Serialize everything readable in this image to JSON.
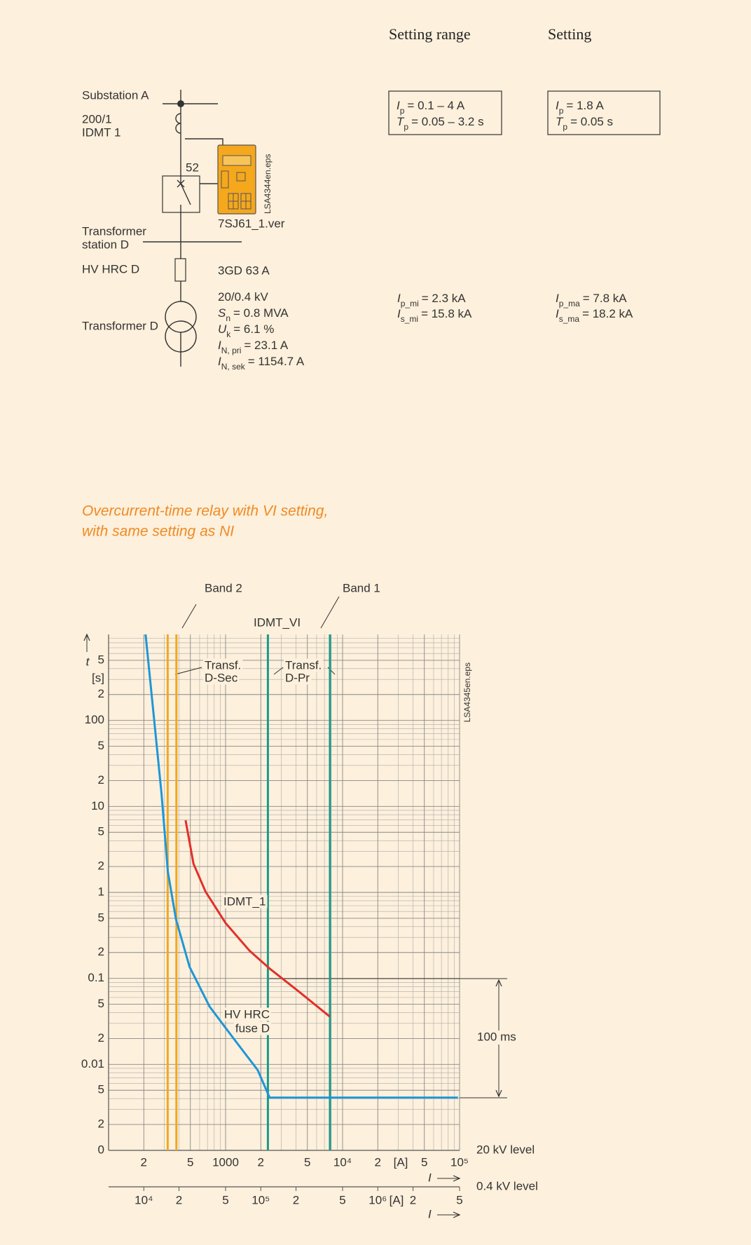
{
  "header": {
    "setting_range": "Setting range",
    "setting": "Setting"
  },
  "diagram": {
    "substation": "Substation A",
    "ct_ratio": "200/1",
    "relay": "IDMT 1",
    "breaker": "52",
    "relay_file": "7SJ61_1.ver",
    "eps": "LSA4344en.eps",
    "station": [
      "Transformer",
      "station D"
    ],
    "fuse": "HV HRC D",
    "fuse_type": "3GD 63 A",
    "transformer": "Transformer D",
    "transformer_data": [
      {
        "text": "20/0.4 kV"
      },
      {
        "sym": "S",
        "sub": "n",
        "text": "= 0.8 MVA"
      },
      {
        "sym": "U",
        "sub": "k",
        "text": "= 6.1 %"
      },
      {
        "sym": "I",
        "sub": "N, pri",
        "text": "= 23.1 A"
      },
      {
        "sym": "I",
        "sub": "N, sek",
        "text": "= 1154.7 A"
      }
    ]
  },
  "setting_range": [
    {
      "sym": "I",
      "sub": "p",
      "text": "= 0.1 – 4 A"
    },
    {
      "sym": "T",
      "sub": "p",
      "text": "= 0.05 – 3.2 s"
    }
  ],
  "setting": [
    {
      "sym": "I",
      "sub": "p",
      "text": "= 1.8 A"
    },
    {
      "sym": "T",
      "sub": "p",
      "text": "= 0.05 s"
    }
  ],
  "short_circuit_min": [
    {
      "sym": "I",
      "sub": "p_mi",
      "text": "= 2.3 kA"
    },
    {
      "sym": "I",
      "sub": "s_mi",
      "text": "= 15.8 kA"
    }
  ],
  "short_circuit_max": [
    {
      "sym": "I",
      "sub": "p_ma",
      "text": "= 7.8 kA"
    },
    {
      "sym": "I",
      "sub": "s_ma",
      "text": "= 18.2 kA"
    }
  ],
  "heading": [
    "Overcurrent-time relay with VI setting,",
    "with same setting as NI"
  ],
  "chart_data": {
    "type": "line",
    "log_x": true,
    "log_y": true,
    "grid": true,
    "xlabel": "I",
    "x_unit": "[A]",
    "x_level": "20 kV level",
    "x2label": "I",
    "x2_unit": "[A]",
    "x2_level": "0.4 kV level",
    "ylabel": "t",
    "y_unit": "[s]",
    "xlim": [
      100,
      100000
    ],
    "xticks": [
      {
        "value": 200,
        "label": "2"
      },
      {
        "value": 500,
        "label": "5"
      },
      1000,
      {
        "value": 2000,
        "label": "2"
      },
      {
        "value": 5000,
        "label": "5"
      },
      {
        "value": 10000,
        "label": "10⁴"
      },
      {
        "value": 20000,
        "label": "2"
      },
      {
        "value": 50000,
        "label": "5"
      },
      {
        "value": 100000,
        "label": "10⁵"
      }
    ],
    "xminor": [
      300,
      400,
      600,
      700,
      800,
      900,
      3000,
      4000,
      6000,
      7000,
      8000,
      9000,
      30000,
      40000,
      60000,
      70000,
      80000,
      90000
    ],
    "x2lim": [
      5000,
      5000000
    ],
    "x2ticks": [
      {
        "value": 10000,
        "label": "10⁴"
      },
      {
        "value": 20000,
        "label": "2"
      },
      {
        "value": 50000,
        "label": "5"
      },
      {
        "value": 100000,
        "label": "10⁵"
      },
      {
        "value": 200000,
        "label": "2"
      },
      {
        "value": 500000,
        "label": "5"
      },
      {
        "value": 1000000,
        "label": "10⁶"
      },
      {
        "value": 2000000,
        "label": "2"
      },
      {
        "value": 5000000,
        "label": "5"
      }
    ],
    "ylim": [
      0.001,
      1000
    ],
    "yticks": [
      {
        "value": 500,
        "label": "5"
      },
      {
        "value": 200,
        "label": "2"
      },
      100,
      {
        "value": 50,
        "label": "5"
      },
      {
        "value": 20,
        "label": "2"
      },
      10,
      {
        "value": 5,
        "label": "5"
      },
      {
        "value": 2,
        "label": "2"
      },
      1,
      {
        "value": 0.5,
        "label": "5"
      },
      {
        "value": 0.2,
        "label": "2"
      },
      0.1,
      {
        "value": 0.05,
        "label": "5"
      },
      {
        "value": 0.02,
        "label": "2"
      },
      0.01,
      {
        "value": 0.005,
        "label": "5"
      },
      {
        "value": 0.002,
        "label": "2"
      },
      {
        "value": 0.001,
        "label": "0"
      }
    ],
    "yminor": [
      300,
      400,
      600,
      700,
      800,
      900,
      30,
      40,
      60,
      70,
      80,
      90,
      3,
      4,
      6,
      7,
      8,
      9,
      0.3,
      0.4,
      0.6,
      0.7,
      0.8,
      0.9,
      0.03,
      0.04,
      0.06,
      0.07,
      0.08,
      0.09,
      0.003,
      0.004,
      0.006,
      0.007,
      0.008,
      0.009
    ],
    "series": [
      {
        "label": [
          "HV HRC",
          "fuse D"
        ],
        "color": "#1e96d7",
        "x": [
          207,
          242,
          283,
          321,
          376,
          492,
          730,
          1170,
          1880,
          2380,
          97000
        ],
        "values": [
          1000,
          121,
          14.5,
          1.74,
          0.49,
          0.136,
          0.047,
          0.02,
          0.0086,
          0.0041,
          0.0041
        ]
      },
      {
        "label": [
          "IDMT_1"
        ],
        "color": "#e2302a",
        "x": [
          455,
          532,
          674,
          1000,
          1600,
          2380,
          4140,
          7760
        ],
        "values": [
          6.9,
          2.15,
          1.02,
          0.44,
          0.21,
          0.13,
          0.072,
          0.036
        ]
      }
    ],
    "vlines": [
      {
        "x": 320,
        "color": "#f0a81c"
      },
      {
        "x": 380,
        "color": "#f0a81c"
      },
      {
        "x": 2300,
        "color": "#1a9a8a"
      },
      {
        "x": 7800,
        "color": "#1a9a8a"
      }
    ],
    "annotations": [
      {
        "lines": [
          "Band 2"
        ]
      },
      {
        "lines": [
          "Band 1"
        ]
      },
      {
        "lines": [
          "IDMT_VI"
        ]
      },
      {
        "lines": [
          "Transf.",
          "D-Sec"
        ]
      },
      {
        "lines": [
          "Transf.",
          "D-Pr"
        ]
      },
      {
        "lines": [
          "100 ms"
        ]
      },
      {
        "lines": [
          "LSA4345en.eps"
        ]
      }
    ]
  }
}
